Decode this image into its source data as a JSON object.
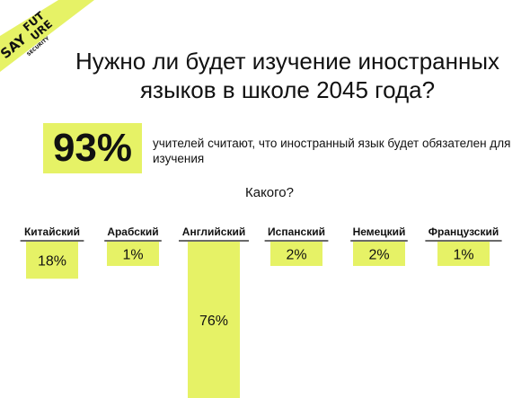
{
  "logo": {
    "say": "SAY",
    "future_1": "FUT",
    "future_2": "URE",
    "security": "SECURITY"
  },
  "title": "Нужно ли будет изучение иностранных языков в школе 2045 года?",
  "stat": {
    "value": "93%",
    "text": "учителей считают, что иностранный язык будет обязателен для изучения"
  },
  "subtitle": "Какого?",
  "colors": {
    "accent": "#e6f266",
    "text": "#111111",
    "background": "#ffffff"
  },
  "chart_data": {
    "type": "bar",
    "categories": [
      "Китайский",
      "Арабский",
      "Английский",
      "Испанский",
      "Немецкий",
      "Французский"
    ],
    "values": [
      18,
      1,
      76,
      2,
      2,
      1
    ],
    "value_labels": [
      "18%",
      "1%",
      "76%",
      "2%",
      "2%",
      "1%"
    ],
    "unit": "%",
    "orientation": "vertical-hanging",
    "ylim": [
      0,
      76
    ],
    "grid": false,
    "legend": "none"
  }
}
